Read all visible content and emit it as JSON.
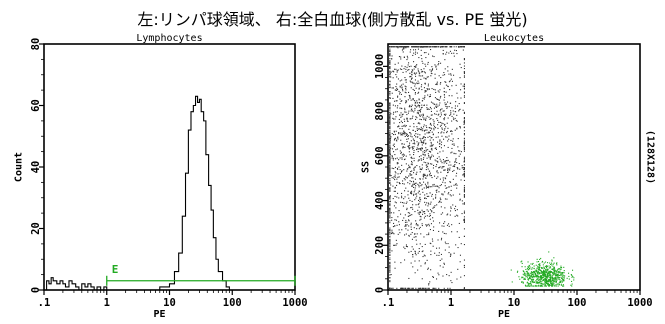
{
  "caption": "左:リンパ球領域、 右:全白血球(側方散乱 vs. PE 蛍光)",
  "chart_data": [
    {
      "type": "histogram",
      "title": "Lymphocytes",
      "xlabel": "PE",
      "ylabel": "Count",
      "xscale": "log",
      "xlim": [
        0.1,
        1000
      ],
      "ylim": [
        0,
        80
      ],
      "xticks": [
        ".1",
        "1",
        "10",
        "100",
        "1000"
      ],
      "yticks": [
        "0",
        "20",
        "40",
        "60",
        "80"
      ],
      "series": [
        {
          "x": [
            0.1,
            0.11,
            0.12,
            0.13,
            0.14,
            0.16,
            0.18,
            0.2,
            0.22,
            0.25,
            0.28,
            0.32,
            0.36,
            0.4,
            0.45,
            0.5,
            0.56,
            0.63,
            0.7,
            0.8,
            0.9,
            1.0,
            1.2,
            1.5,
            2,
            3,
            4,
            5,
            6,
            7,
            8,
            10,
            12,
            14,
            16,
            18,
            20,
            22,
            24,
            26,
            28,
            30,
            32,
            35,
            38,
            42,
            46,
            50,
            55,
            60,
            70,
            80,
            90,
            100,
            120,
            150,
            200,
            500,
            1000
          ],
          "values": [
            0,
            3,
            2,
            4,
            3,
            2,
            3,
            2,
            1,
            3,
            2,
            1,
            0,
            2,
            1,
            2,
            1,
            0,
            1,
            0,
            1,
            0,
            0,
            0,
            0,
            0,
            0,
            0,
            0,
            1,
            1,
            2,
            6,
            12,
            24,
            38,
            52,
            58,
            60,
            63,
            61,
            62,
            58,
            55,
            44,
            34,
            26,
            17,
            10,
            6,
            3,
            1,
            0,
            0,
            0,
            0,
            0,
            0,
            0
          ]
        }
      ],
      "gate": {
        "label": "E",
        "range": [
          1,
          1000
        ],
        "y": 3,
        "color": "#22aa22"
      }
    },
    {
      "type": "scatter",
      "title": "Leukocytes",
      "xlabel": "PE",
      "ylabel": "SS",
      "xscale": "log",
      "xlim": [
        0.1,
        1000
      ],
      "ylim": [
        0,
        1100
      ],
      "xticks": [
        ".1",
        "1",
        "10",
        "100",
        "1000"
      ],
      "yticks": [
        "0",
        "200",
        "400",
        "600",
        "800",
        "1000"
      ],
      "side_label": "(128X128)",
      "populations": [
        {
          "name": "",
          "x_center": 0.3,
          "x_spread": 0.45,
          "y_center": 650,
          "y_spread": 320,
          "color": "#333333"
        },
        {
          "name": "",
          "x_center": 30,
          "x_spread": 0.18,
          "y_center": 65,
          "y_spread": 30,
          "color": "#22aa22"
        }
      ]
    }
  ]
}
